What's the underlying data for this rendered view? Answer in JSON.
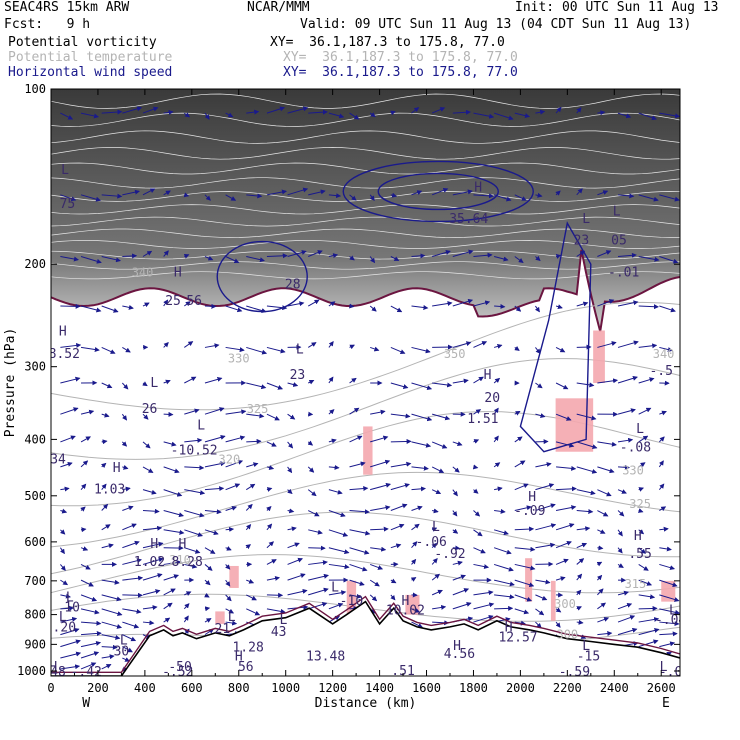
{
  "header": {
    "model": "SEAC4RS 15km ARW",
    "org": "NCAR/MMM",
    "init": "Init: 00 UTC Sun 11 Aug 13",
    "fcst": "Fcst:   9 h",
    "valid": "Valid: 09 UTC Sun 11 Aug 13 (04 CDT Sun 11 Aug 13)"
  },
  "fields": [
    {
      "name": "Potential vorticity",
      "xy": "XY=  36.1,187.3 to 175.8, 77.0",
      "color": "#8b1a4a"
    },
    {
      "name": "Potential temperature",
      "xy": "XY=  36.1,187.3 to 175.8, 77.0",
      "color": "#b4b4b4"
    },
    {
      "name": "Horizontal wind speed",
      "xy": "XY=  36.1,187.3 to 175.8, 77.0",
      "color": "#1a1a8c"
    }
  ],
  "chart_data": {
    "type": "cross-section",
    "xlabel": "Distance (km)",
    "ylabel": "Pressure (hPa)",
    "xlim": [
      0,
      2680
    ],
    "ylim": [
      100,
      1020
    ],
    "y_log": true,
    "x_ticks": [
      "0",
      "200",
      "400",
      "600",
      "800",
      "1000",
      "1200",
      "1400",
      "1600",
      "1800",
      "2000",
      "2200",
      "2400",
      "2600"
    ],
    "y_ticks": [
      "100",
      "200",
      "300",
      "400",
      "500",
      "600",
      "700",
      "800",
      "900",
      "1000"
    ],
    "x_end_labels": {
      "left": "W",
      "right": "E"
    },
    "theta_labels": [
      {
        "x": 390,
        "p": 210,
        "text": "340"
      },
      {
        "x": 800,
        "p": 295,
        "text": "330"
      },
      {
        "x": 880,
        "p": 360,
        "text": "325"
      },
      {
        "x": 760,
        "p": 440,
        "text": "320"
      },
      {
        "x": 550,
        "p": 655,
        "text": "310"
      },
      {
        "x": 2480,
        "p": 460,
        "text": "330"
      },
      {
        "x": 2510,
        "p": 525,
        "text": "325"
      },
      {
        "x": 2490,
        "p": 720,
        "text": "315"
      },
      {
        "x": 2610,
        "p": 290,
        "text": "340"
      },
      {
        "x": 2190,
        "p": 780,
        "text": "300"
      },
      {
        "x": 2200,
        "p": 880,
        "text": "300"
      },
      {
        "x": 1720,
        "p": 290,
        "text": "350"
      }
    ],
    "extrema_labels": [
      {
        "x": 60,
        "p": 140,
        "text": "L"
      },
      {
        "x": 70,
        "p": 160,
        "text": "75"
      },
      {
        "x": 50,
        "p": 265,
        "text": "H"
      },
      {
        "x": 40,
        "p": 290,
        "text": "18.52"
      },
      {
        "x": 540,
        "p": 210,
        "text": "H"
      },
      {
        "x": 520,
        "p": 235,
        "text": "25"
      },
      {
        "x": 610,
        "p": 235,
        "text": "56"
      },
      {
        "x": 1030,
        "p": 220,
        "text": "28"
      },
      {
        "x": 1060,
        "p": 285,
        "text": "L"
      },
      {
        "x": 1050,
        "p": 315,
        "text": "23"
      },
      {
        "x": 440,
        "p": 325,
        "text": "L"
      },
      {
        "x": 420,
        "p": 360,
        "text": "26"
      },
      {
        "x": 640,
        "p": 385,
        "text": "L"
      },
      {
        "x": 610,
        "p": 425,
        "text": "-10.52"
      },
      {
        "x": 30,
        "p": 440,
        "text": "34"
      },
      {
        "x": 280,
        "p": 455,
        "text": "H"
      },
      {
        "x": 250,
        "p": 495,
        "text": "1.03"
      },
      {
        "x": 1820,
        "p": 150,
        "text": "H"
      },
      {
        "x": 1780,
        "p": 170,
        "text": "35.64"
      },
      {
        "x": 1860,
        "p": 315,
        "text": "H"
      },
      {
        "x": 1880,
        "p": 345,
        "text": "20"
      },
      {
        "x": 1840,
        "p": 375,
        "text": "1.51"
      },
      {
        "x": 2280,
        "p": 170,
        "text": "L"
      },
      {
        "x": 2260,
        "p": 185,
        "text": "23"
      },
      {
        "x": 2410,
        "p": 165,
        "text": "L"
      },
      {
        "x": 2420,
        "p": 185,
        "text": "05"
      },
      {
        "x": 2440,
        "p": 210,
        "text": "-.01"
      },
      {
        "x": 2510,
        "p": 390,
        "text": "L"
      },
      {
        "x": 2490,
        "p": 420,
        "text": "-.08"
      },
      {
        "x": 2600,
        "p": 310,
        "text": "-.5"
      },
      {
        "x": 2050,
        "p": 510,
        "text": "H"
      },
      {
        "x": 2040,
        "p": 540,
        "text": "-.09"
      },
      {
        "x": 1640,
        "p": 575,
        "text": "L"
      },
      {
        "x": 1620,
        "p": 610,
        "text": "-.06"
      },
      {
        "x": 1700,
        "p": 640,
        "text": "-.92"
      },
      {
        "x": 2500,
        "p": 595,
        "text": "H"
      },
      {
        "x": 2510,
        "p": 640,
        "text": ".55"
      },
      {
        "x": 440,
        "p": 615,
        "text": "H"
      },
      {
        "x": 420,
        "p": 660,
        "text": "1.02"
      },
      {
        "x": 560,
        "p": 615,
        "text": "H"
      },
      {
        "x": 580,
        "p": 660,
        "text": "8.28"
      },
      {
        "x": 80,
        "p": 760,
        "text": "L"
      },
      {
        "x": 90,
        "p": 790,
        "text": "10"
      },
      {
        "x": 50,
        "p": 820,
        "text": "L"
      },
      {
        "x": 40,
        "p": 855,
        "text": "2.20"
      },
      {
        "x": 1210,
        "p": 730,
        "text": "L"
      },
      {
        "x": 1280,
        "p": 770,
        "text": "-10"
      },
      {
        "x": 1510,
        "p": 770,
        "text": "H"
      },
      {
        "x": 1510,
        "p": 800,
        "text": "10.02"
      },
      {
        "x": 770,
        "p": 820,
        "text": "L"
      },
      {
        "x": 730,
        "p": 860,
        "text": "21"
      },
      {
        "x": 990,
        "p": 830,
        "text": "L"
      },
      {
        "x": 970,
        "p": 870,
        "text": "43"
      },
      {
        "x": 310,
        "p": 900,
        "text": "L"
      },
      {
        "x": 300,
        "p": 940,
        "text": "30"
      },
      {
        "x": 840,
        "p": 925,
        "text": "1.28"
      },
      {
        "x": 800,
        "p": 960,
        "text": "H"
      },
      {
        "x": 830,
        "p": 1000,
        "text": "56"
      },
      {
        "x": 550,
        "p": 1000,
        "text": "-50"
      },
      {
        "x": 540,
        "p": 1020,
        "text": "-.52"
      },
      {
        "x": 1170,
        "p": 960,
        "text": "13.48"
      },
      {
        "x": 1500,
        "p": 1015,
        "text": ".51"
      },
      {
        "x": 1730,
        "p": 920,
        "text": "H"
      },
      {
        "x": 1740,
        "p": 950,
        "text": "4.56"
      },
      {
        "x": 1950,
        "p": 855,
        "text": "H"
      },
      {
        "x": 1990,
        "p": 890,
        "text": "12.57"
      },
      {
        "x": 2280,
        "p": 920,
        "text": "L"
      },
      {
        "x": 2290,
        "p": 960,
        "text": "-15"
      },
      {
        "x": 2650,
        "p": 800,
        "text": "L"
      },
      {
        "x": 2640,
        "p": 830,
        "text": "-.04"
      },
      {
        "x": 2610,
        "p": 1000,
        "text": "L"
      },
      {
        "x": 2640,
        "p": 1020,
        "text": "-.0"
      },
      {
        "x": 2230,
        "p": 1020,
        "text": "-.59"
      },
      {
        "x": 10,
        "p": 1000,
        "text": "H"
      },
      {
        "x": 30,
        "p": 1020,
        "text": "48"
      },
      {
        "x": 150,
        "p": 1020,
        "text": "-.42"
      }
    ]
  }
}
